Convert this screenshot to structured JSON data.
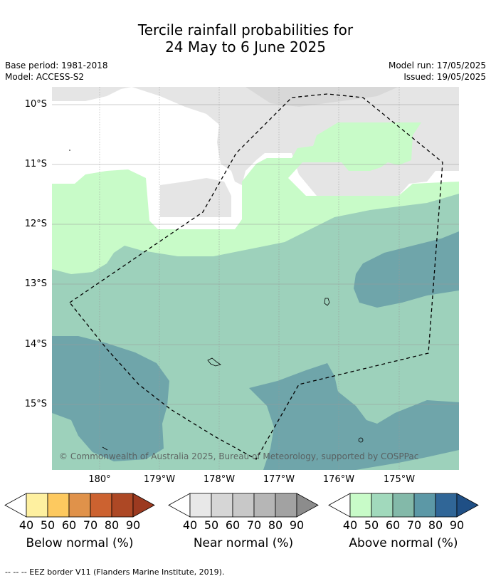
{
  "title_line1": "Tercile rainfall probabilities for",
  "title_line2": "24 May to 6 June 2025",
  "meta_left": {
    "base_period": "Base period: 1981-2018",
    "model": "Model: ACCESS-S2"
  },
  "meta_right": {
    "model_run": "Model run: 17/05/2025",
    "issued": "Issued: 19/05/2025"
  },
  "lat_labels": [
    "10°S",
    "11°S",
    "12°S",
    "13°S",
    "14°S",
    "15°S"
  ],
  "lon_labels": [
    "180°",
    "179°W",
    "178°W",
    "177°W",
    "176°W",
    "175°W"
  ],
  "copyright": "© Commonwealth of Australia 2025, Bureau of Meteorology, supported by COSPPac",
  "colorbars": [
    {
      "title": "Below normal (%)",
      "ticks": [
        "40",
        "50",
        "60",
        "70",
        "80",
        "90"
      ],
      "colors": [
        "#fef0a0",
        "#fdc95f",
        "#e0924a",
        "#cc6230",
        "#ad4825",
        "#9c3a20"
      ]
    },
    {
      "title": "Near normal (%)",
      "ticks": [
        "40",
        "50",
        "60",
        "70",
        "80",
        "90"
      ],
      "colors": [
        "#e8e8e8",
        "#d6d6d6",
        "#c8c8c8",
        "#b6b6b6",
        "#a2a2a2",
        "#8c8c8c"
      ]
    },
    {
      "title": "Above normal (%)",
      "ticks": [
        "40",
        "50",
        "60",
        "70",
        "80",
        "90"
      ],
      "colors": [
        "#c8fbc8",
        "#a1d9bc",
        "#83b9a9",
        "#5c98a6",
        "#306697",
        "#1f4f85"
      ]
    }
  ],
  "footnote": "-- -- -- EEZ border V11 (Flanders Marine Institute, 2019).",
  "map_colors": {
    "near_normal_light": "#e5e5e5",
    "above_50": "#c8fbc8",
    "above_60": "#9dd1bb",
    "above_70": "#6fa5aa"
  }
}
